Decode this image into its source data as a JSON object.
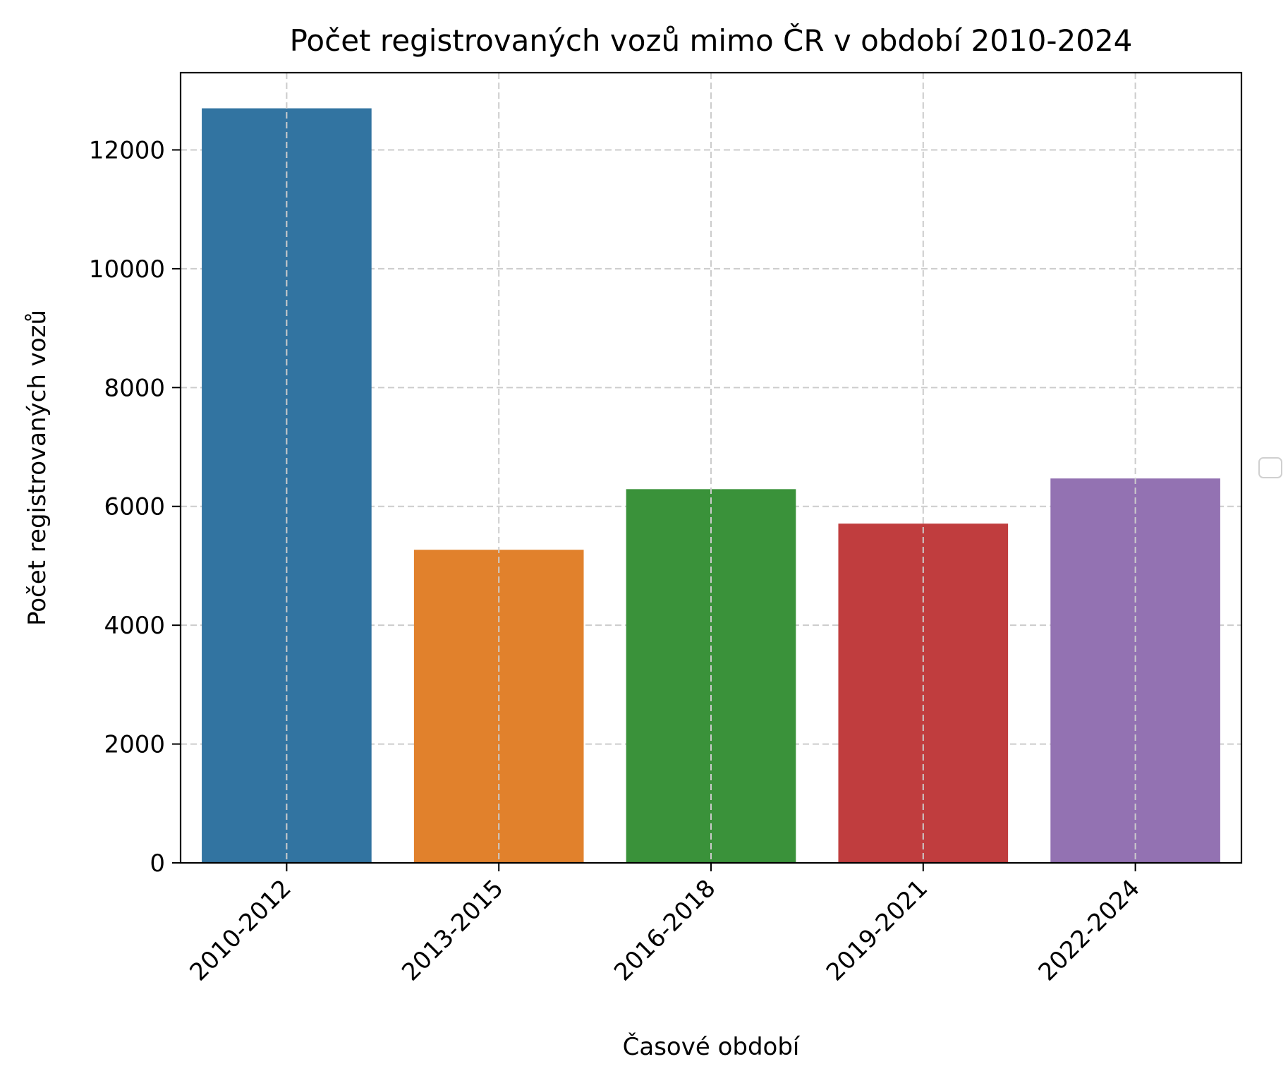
{
  "chart_data": {
    "type": "bar",
    "title": "Počet registrovaných vozů mimo ČR v období 2010-2024",
    "xlabel": "Časové období",
    "ylabel": "Počet registrovaných vozů",
    "categories": [
      "2010-2012",
      "2013-2015",
      "2016-2018",
      "2019-2021",
      "2022-2024"
    ],
    "values": [
      12700,
      5270,
      6290,
      5710,
      6470
    ],
    "colors": [
      "#3274a1",
      "#e1812c",
      "#3a923a",
      "#c03d3e",
      "#9372b2"
    ],
    "ylim": [
      0,
      13300
    ],
    "yticks": [
      0,
      2000,
      4000,
      6000,
      8000,
      10000,
      12000
    ],
    "grid": true,
    "legend": "empty box, center-right outside plot",
    "xtick_rotation_deg": 45
  }
}
